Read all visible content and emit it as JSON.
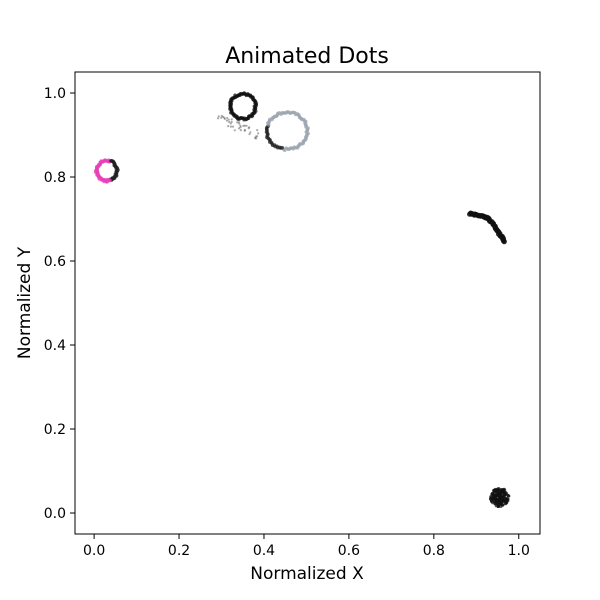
{
  "chart_data": {
    "type": "scatter",
    "title": "Animated Dots",
    "xlabel": "Normalized X",
    "ylabel": "Normalized Y",
    "xlim": [
      -0.045,
      1.05
    ],
    "ylim": [
      -0.05,
      1.05
    ],
    "xticks": [
      0.0,
      0.2,
      0.4,
      0.6,
      0.8,
      1.0
    ],
    "xtick_labels": [
      "0.0",
      "0.2",
      "0.4",
      "0.6",
      "0.8",
      "1.0"
    ],
    "yticks": [
      0.0,
      0.2,
      0.4,
      0.6,
      0.8,
      1.0
    ],
    "ytick_labels": [
      "0.0",
      "0.2",
      "0.4",
      "0.6",
      "0.8",
      "1.0"
    ],
    "grid": false,
    "series": [
      {
        "kind": "ring",
        "center": [
          0.03,
          0.815
        ],
        "radius": [
          0.024,
          0.024
        ],
        "color": "#e83fb8",
        "dark_color": "#222222",
        "dark_side": "right"
      },
      {
        "kind": "ring",
        "center": [
          0.35,
          0.968
        ],
        "radius": [
          0.03,
          0.03
        ],
        "color": "#111111",
        "dark_color": "#111111",
        "dark_side": "none"
      },
      {
        "kind": "ring",
        "center": [
          0.454,
          0.91
        ],
        "radius": [
          0.048,
          0.044
        ],
        "color": "#9aa3ad",
        "dark_color": "#222222",
        "dark_side": "left"
      },
      {
        "kind": "trail",
        "points": [
          [
            0.297,
            0.948
          ],
          [
            0.312,
            0.935
          ],
          [
            0.33,
            0.925
          ],
          [
            0.35,
            0.915
          ],
          [
            0.37,
            0.905
          ],
          [
            0.385,
            0.9
          ]
        ],
        "color": "#444444"
      },
      {
        "kind": "path",
        "points": [
          [
            0.885,
            0.713
          ],
          [
            0.9,
            0.71
          ],
          [
            0.918,
            0.706
          ],
          [
            0.93,
            0.7
          ],
          [
            0.945,
            0.68
          ],
          [
            0.958,
            0.66
          ],
          [
            0.968,
            0.645
          ]
        ],
        "color": "#111111"
      },
      {
        "kind": "cluster",
        "center": [
          0.955,
          0.037
        ],
        "spread": [
          0.022,
          0.022
        ],
        "count": 160,
        "color": "#111111"
      }
    ]
  }
}
